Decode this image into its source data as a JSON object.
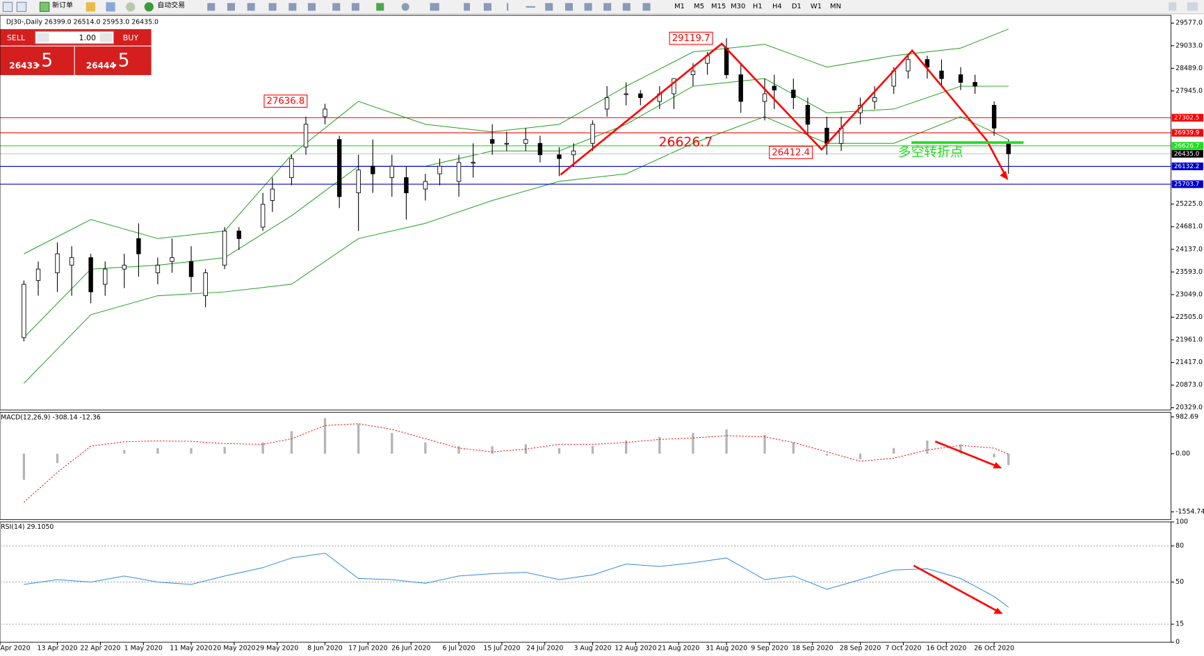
{
  "toolbar": {
    "new_order": "新订单",
    "auto_trading": "自动交易",
    "timeframes": [
      "M1",
      "M5",
      "M15",
      "M30",
      "H1",
      "H4",
      "D1",
      "W1",
      "MN"
    ]
  },
  "trade_panel": {
    "sell": "SELL",
    "lots": "1.00",
    "buy": "BUY",
    "bid": "26433",
    "bid_frac": ".5",
    "ask": "26444",
    "ask_frac": ".5"
  },
  "chart_data": [
    {
      "type": "candlestick",
      "title": "DJ30-,Daily 26399.0 26514.0 25953.0 26435.0",
      "x": [
        "6 Apr 2020",
        "9 Apr 2020",
        "13 Apr 2020",
        "16 Apr 2020",
        "20 Apr 2020",
        "23 Apr 2020",
        "27 Apr 2020",
        "30 Apr 2020",
        "4 May 2020",
        "7 May 2020",
        "11 May 2020",
        "14 May 2020",
        "18 May 2020",
        "21 May 2020",
        "26 May 2020",
        "28 May 2020",
        "1 Jun 2020",
        "4 Jun 2020",
        "8 Jun 2020",
        "11 Jun 2020",
        "15 Jun 2020",
        "18 Jun 2020",
        "22 Jun 2020",
        "25 Jun 2020",
        "29 Jun 2020",
        "2 Jul 2020",
        "6 Jul 2020",
        "9 Jul 2020",
        "13 Jul 2020",
        "16 Jul 2020",
        "20 Jul 2020",
        "23 Jul 2020",
        "27 Jul 2020",
        "30 Jul 2020",
        "3 Aug 2020",
        "6 Aug 2020",
        "10 Aug 2020",
        "13 Aug 2020",
        "17 Aug 2020",
        "20 Aug 2020",
        "24 Aug 2020",
        "27 Aug 2020",
        "31 Aug 2020",
        "3 Sep 2020",
        "8 Sep 2020",
        "10 Sep 2020",
        "14 Sep 2020",
        "17 Sep 2020",
        "21 Sep 2020",
        "24 Sep 2020",
        "28 Sep 2020",
        "1 Oct 2020",
        "5 Oct 2020",
        "8 Oct 2020",
        "12 Oct 2020",
        "15 Oct 2020",
        "19 Oct 2020",
        "22 Oct 2020",
        "26 Oct 2020",
        "29 Oct 2020"
      ],
      "open": [
        22014,
        23388,
        23572,
        23755,
        23938,
        23297,
        23663,
        24396,
        23572,
        23846,
        23846,
        23022,
        23755,
        24579,
        24671,
        25312,
        25862,
        26594,
        27327,
        26778,
        25495,
        26136,
        25862,
        25862,
        25587,
        25953,
        25770,
        26228,
        26778,
        26686,
        26686,
        26686,
        26411,
        26411,
        26686,
        27510,
        27877,
        27877,
        27694,
        27877,
        28335,
        28610,
        28976,
        28335,
        27694,
        28060,
        27968,
        27602,
        27052,
        26686,
        27419,
        27694,
        28060,
        28426,
        28701,
        28426,
        28335,
        28152,
        27602,
        26686
      ],
      "high": [
        23388,
        23846,
        24304,
        24213,
        24030,
        23846,
        24030,
        24762,
        23938,
        24396,
        24213,
        23663,
        24671,
        24671,
        25495,
        25862,
        26411,
        27327,
        27639,
        26869,
        26411,
        26778,
        26411,
        26136,
        25953,
        26320,
        26411,
        26686,
        27144,
        26961,
        27052,
        26869,
        26594,
        26686,
        27236,
        28060,
        28152,
        27968,
        28060,
        28243,
        28610,
        28884,
        29214,
        28610,
        28243,
        28335,
        28243,
        27785,
        27327,
        27327,
        27785,
        28060,
        28518,
        28848,
        28793,
        28701,
        28518,
        28335,
        27694,
        26778
      ],
      "low": [
        21923,
        23022,
        23114,
        23022,
        22839,
        23022,
        23205,
        23480,
        23297,
        23572,
        23114,
        22747,
        23663,
        24121,
        24579,
        25037,
        25678,
        26411,
        27144,
        25129,
        24579,
        25495,
        25404,
        24854,
        25312,
        25678,
        25404,
        25862,
        26411,
        26503,
        26503,
        26228,
        25898,
        26136,
        26503,
        27327,
        27602,
        27602,
        27510,
        27510,
        28060,
        28335,
        28243,
        27419,
        27236,
        27510,
        27510,
        26869,
        26411,
        26503,
        27144,
        27510,
        27877,
        28243,
        28243,
        28060,
        27968,
        27877,
        26869,
        25953
      ],
      "close": [
        23297,
        23663,
        24030,
        23938,
        23114,
        23663,
        23755,
        24030,
        23755,
        23938,
        23480,
        23572,
        24579,
        24396,
        25220,
        25587,
        26320,
        27144,
        27510,
        25404,
        26045,
        25953,
        26136,
        25495,
        25770,
        26136,
        26228,
        26228,
        26686,
        26686,
        26778,
        26411,
        26320,
        26503,
        27144,
        27785,
        27877,
        27785,
        27877,
        28243,
        28426,
        28793,
        28335,
        27694,
        27877,
        27968,
        27785,
        27144,
        26686,
        27052,
        27602,
        27785,
        28426,
        28701,
        28518,
        28243,
        28152,
        28060,
        27052,
        26435
      ],
      "up_color": "#ffffff",
      "down_color": "#000000",
      "bands": {
        "color": "#1e9e1e",
        "x": [
          "6 Apr 2020",
          "20 Apr 2020",
          "4 May 2020",
          "18 May 2020",
          "1 Jun 2020",
          "15 Jun 2020",
          "29 Jun 2020",
          "13 Jul 2020",
          "27 Jul 2020",
          "10 Aug 2020",
          "24 Aug 2020",
          "8 Sep 2020",
          "21 Sep 2020",
          "5 Oct 2020",
          "19 Oct 2020",
          "29 Oct 2020"
        ],
        "upper": [
          24030,
          24854,
          24396,
          24579,
          26411,
          27694,
          27144,
          26961,
          27144,
          28060,
          28884,
          29068,
          28518,
          28793,
          28976,
          29434
        ],
        "middle": [
          22014,
          23663,
          23755,
          23938,
          24946,
          26136,
          26136,
          26503,
          26503,
          27144,
          28060,
          28243,
          27419,
          27510,
          28060,
          28060
        ],
        "lower": [
          20915,
          22564,
          23022,
          23114,
          23297,
          24396,
          24762,
          25312,
          25770,
          25953,
          26686,
          27327,
          26686,
          26686,
          27327,
          26778
        ]
      },
      "price_lines": [
        {
          "value": 27302.5,
          "label": "27302.5",
          "color": "#ff0000"
        },
        {
          "value": 26939.9,
          "label": "26939.9",
          "color": "#ff0000"
        },
        {
          "value": 26626.7,
          "label": "26626.7",
          "color": "#22dd22"
        },
        {
          "value": 26435.0,
          "label": "26435.0",
          "color": "#c8c8c8",
          "label_color": "#000000"
        },
        {
          "value": 26132.2,
          "label": "26132.2",
          "color": "#0000cc"
        },
        {
          "value": 25703.7,
          "label": "25703.7",
          "color": "#0000cc"
        }
      ],
      "annotations": [
        "29119.7",
        "27636.8",
        "26626.7",
        "26412.4",
        "多空转折点"
      ],
      "xlim": [
        "1 Apr 2020",
        "2 Dec 2020"
      ],
      "xticks": [
        "Apr 2020",
        "13 Apr 2020",
        "22 Apr 2020",
        "1 May 2020",
        "11 May 2020",
        "20 May 2020",
        "29 May 2020",
        "8 Jun 2020",
        "17 Jun 2020",
        "26 Jun 2020",
        "6 Jul 2020",
        "15 Jul 2020",
        "24 Jul 2020",
        "3 Aug 2020",
        "12 Aug 2020",
        "21 Aug 2020",
        "31 Aug 2020",
        "9 Sep 2020",
        "18 Sep 2020",
        "28 Sep 2020",
        "7 Oct 2020",
        "16 Oct 2020",
        "26 Oct 2020"
      ],
      "ylim": [
        20274,
        29764
      ],
      "yticks": [
        {
          "value": 29577,
          "label": "29577.0"
        },
        {
          "value": 29033,
          "label": "29033.0"
        },
        {
          "value": 28489,
          "label": "28489.0"
        },
        {
          "value": 27945,
          "label": "27945.0"
        },
        {
          "value": 25225,
          "label": "25225.0"
        },
        {
          "value": 24681,
          "label": "24681.0"
        },
        {
          "value": 24137,
          "label": "24137.0"
        },
        {
          "value": 23593,
          "label": "23593.0"
        },
        {
          "value": 23049,
          "label": "23049.0"
        },
        {
          "value": 22505,
          "label": "22505.0"
        },
        {
          "value": 21961,
          "label": "21961.0"
        },
        {
          "value": 21417,
          "label": "21417.0"
        },
        {
          "value": 20873,
          "label": "20873.0"
        },
        {
          "value": 20329,
          "label": "20329.0"
        }
      ]
    },
    {
      "type": "macd",
      "title": "MACD(12,26,9) -308.14 -12.36",
      "x": [
        "6 Apr 2020",
        "13 Apr 2020",
        "20 Apr 2020",
        "27 Apr 2020",
        "4 May 2020",
        "11 May 2020",
        "18 May 2020",
        "26 May 2020",
        "1 Jun 2020",
        "8 Jun 2020",
        "15 Jun 2020",
        "22 Jun 2020",
        "29 Jun 2020",
        "6 Jul 2020",
        "13 Jul 2020",
        "20 Jul 2020",
        "27 Jul 2020",
        "3 Aug 2020",
        "10 Aug 2020",
        "17 Aug 2020",
        "24 Aug 2020",
        "31 Aug 2020",
        "8 Sep 2020",
        "14 Sep 2020",
        "21 Sep 2020",
        "28 Sep 2020",
        "5 Oct 2020",
        "12 Oct 2020",
        "19 Oct 2020",
        "26 Oct 2020",
        "29 Oct 2020"
      ],
      "histogram": [
        -700,
        -250,
        0,
        100,
        150,
        150,
        180,
        300,
        600,
        950,
        800,
        550,
        300,
        200,
        200,
        250,
        150,
        200,
        350,
        450,
        550,
        650,
        500,
        300,
        -50,
        -150,
        150,
        350,
        250,
        -100,
        -308.14
      ],
      "signal": [
        -1300,
        -500,
        200,
        320,
        340,
        330,
        270,
        250,
        400,
        750,
        800,
        650,
        400,
        150,
        50,
        120,
        250,
        250,
        300,
        380,
        420,
        480,
        450,
        300,
        50,
        -200,
        -120,
        100,
        220,
        150,
        -12.36
      ],
      "histogram_color": "#b4b4b4",
      "signal_color": "#ff0000",
      "ylim": [
        -1760,
        1105
      ],
      "yticks": [
        982.69,
        {
          "value": 0,
          "label": "0.00"
        },
        -1554.74
      ]
    },
    {
      "type": "rsi",
      "title": "RSI(14) 29.1050",
      "x": [
        "6 Apr 2020",
        "13 Apr 2020",
        "20 Apr 2020",
        "27 Apr 2020",
        "4 May 2020",
        "11 May 2020",
        "18 May 2020",
        "26 May 2020",
        "1 Jun 2020",
        "8 Jun 2020",
        "15 Jun 2020",
        "22 Jun 2020",
        "29 Jun 2020",
        "6 Jul 2020",
        "13 Jul 2020",
        "20 Jul 2020",
        "27 Jul 2020",
        "3 Aug 2020",
        "10 Aug 2020",
        "17 Aug 2020",
        "24 Aug 2020",
        "31 Aug 2020",
        "8 Sep 2020",
        "14 Sep 2020",
        "21 Sep 2020",
        "28 Sep 2020",
        "5 Oct 2020",
        "12 Oct 2020",
        "19 Oct 2020",
        "26 Oct 2020",
        "29 Oct 2020"
      ],
      "values": [
        48,
        52,
        50,
        55,
        50,
        48,
        55,
        62,
        70,
        74,
        53,
        52,
        49,
        55,
        57,
        58,
        52,
        56,
        65,
        63,
        66,
        70,
        52,
        55,
        44,
        52,
        60,
        61,
        53,
        38,
        29.105
      ],
      "color": "#2f8ae0",
      "ylim": [
        0,
        100
      ],
      "yticks": [
        100,
        80,
        50,
        15,
        0
      ]
    }
  ]
}
